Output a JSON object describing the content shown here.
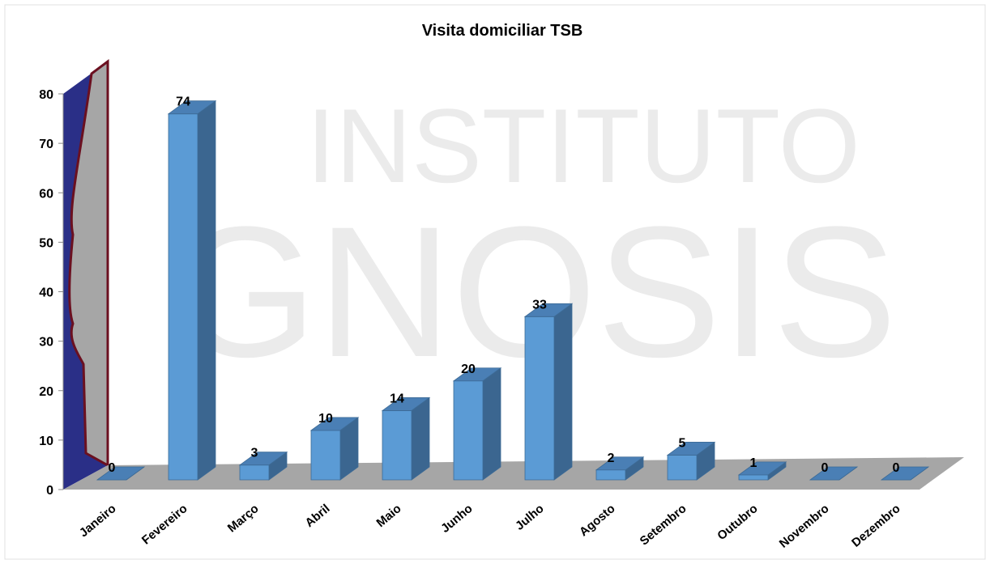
{
  "chart_data": {
    "type": "bar3d",
    "title": "Visita domiciliar TSB",
    "watermark": [
      "INSTITUTO",
      "GNOSIS"
    ],
    "categories": [
      "Janeiro",
      "Fevereiro",
      "Março",
      "Abril",
      "Maio",
      "Junho",
      "Julho",
      "Agosto",
      "Setembro",
      "Outubro",
      "Novembro",
      "Dezembro"
    ],
    "values": [
      0,
      74,
      3,
      10,
      14,
      20,
      33,
      2,
      5,
      1,
      0,
      0
    ],
    "color": "#5b9bd5",
    "ylim": [
      0,
      80
    ],
    "yticks": [
      0,
      10,
      20,
      30,
      40,
      50,
      60,
      70,
      80
    ]
  }
}
